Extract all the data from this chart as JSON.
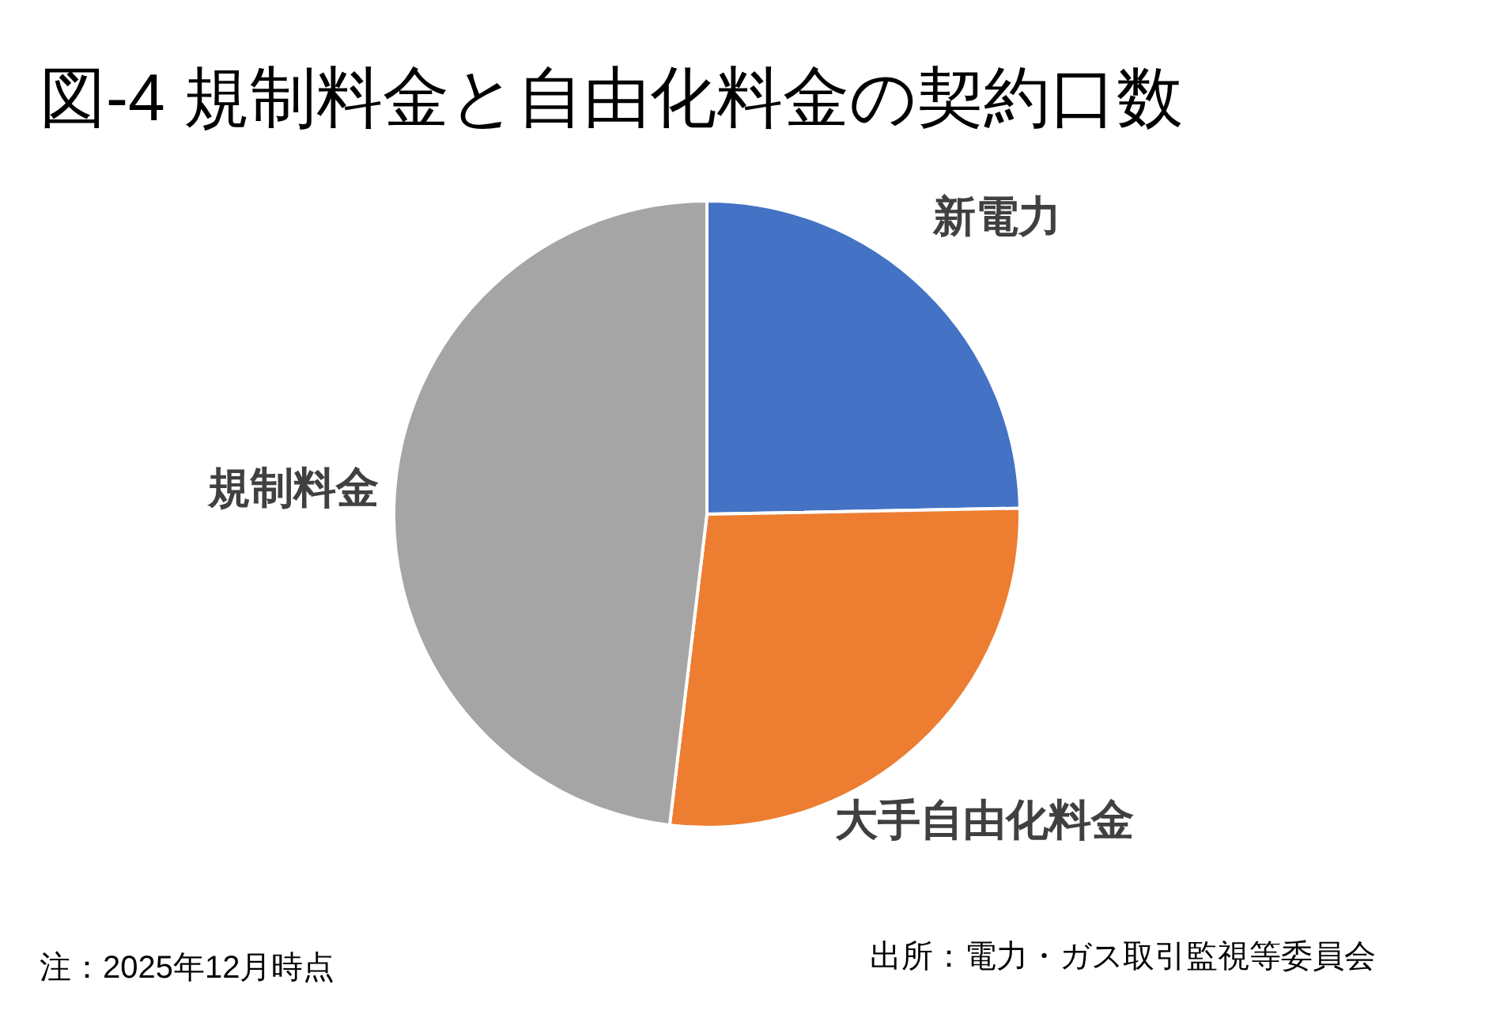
{
  "chart_data": {
    "type": "pie",
    "title": "図-4 規制料金と自由化料金の契約口数",
    "categories": [
      "新電力",
      "大手自由化料金",
      "規制料金"
    ],
    "values": [
      24.7,
      27.2,
      48.1
    ],
    "colors": [
      "#4472c4",
      "#ed7d31",
      "#a5a5a5"
    ],
    "legend": false,
    "annotations": [
      "注：2025年12月時点",
      "出所：電力・ガス取引監視等委員会"
    ]
  }
}
